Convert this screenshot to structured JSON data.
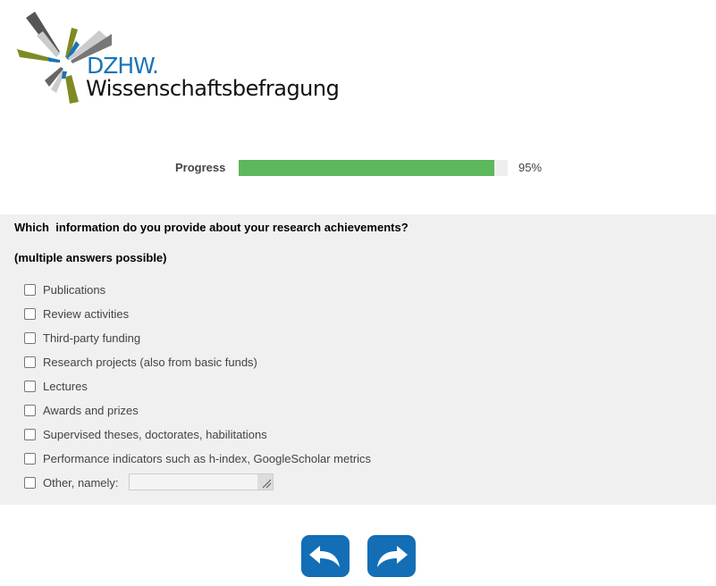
{
  "logo": {
    "line1": "DZHW.",
    "line2": "Wissenschaftsbefragung"
  },
  "progress": {
    "label": "Progress",
    "value": 95,
    "value_text": "95%",
    "color": "#5cb85c"
  },
  "question": {
    "text": "Which  information do you provide about your research achievements?",
    "hint": "(multiple answers possible)"
  },
  "options": [
    {
      "label": "Publications",
      "checked": false
    },
    {
      "label": "Review activities",
      "checked": false
    },
    {
      "label": "Third-party funding",
      "checked": false
    },
    {
      "label": "Research projects (also from basic funds)",
      "checked": false
    },
    {
      "label": "Lectures",
      "checked": false
    },
    {
      "label": "Awards and prizes",
      "checked": false
    },
    {
      "label": "Supervised theses, doctorates, habilitations",
      "checked": false
    },
    {
      "label": "Performance indicators such as h-index, GoogleScholar metrics",
      "checked": false
    },
    {
      "label": "Other, namely:",
      "checked": false
    }
  ],
  "other_input": {
    "value": ""
  },
  "nav": {
    "back_icon": "arrow-back-icon",
    "next_icon": "arrow-forward-icon",
    "color": "#136eb5"
  }
}
